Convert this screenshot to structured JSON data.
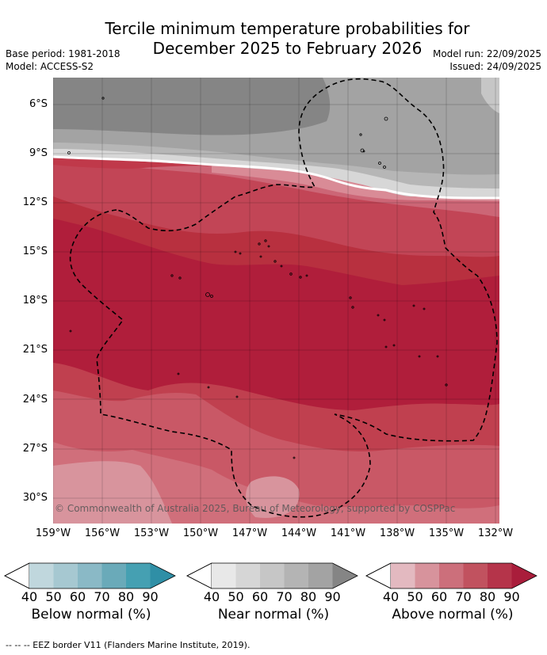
{
  "title_line1": "Tercile minimum temperature probabilities for",
  "title_line2": "December 2025 to February 2026",
  "base_period": "Base period: 1981-2018",
  "model": "Model: ACCESS-S2",
  "model_run": "Model run: 22/09/2025",
  "issued": "Issued: 24/09/2025",
  "lat_labels": [
    "6°S",
    "9°S",
    "12°S",
    "15°S",
    "18°S",
    "21°S",
    "24°S",
    "27°S",
    "30°S"
  ],
  "lon_labels": [
    "159°W",
    "156°W",
    "153°W",
    "150°W",
    "147°W",
    "144°W",
    "141°W",
    "138°W",
    "135°W",
    "132°W"
  ],
  "copyright": "© Commonwealth of Australia 2025, Bureau of Meteorology, supported by COSPPac",
  "legends": [
    {
      "title": "Below normal (%)",
      "ticks": [
        "40",
        "50",
        "60",
        "70",
        "80",
        "90"
      ],
      "colors": [
        "#c0d7dd",
        "#a6c8d1",
        "#8ab9c6",
        "#6aaab9",
        "#45a0b2",
        "#2f8fa6"
      ]
    },
    {
      "title": "Near normal (%)",
      "ticks": [
        "40",
        "50",
        "60",
        "70",
        "80",
        "90"
      ],
      "colors": [
        "#e8e8e8",
        "#d6d6d6",
        "#c6c6c6",
        "#b4b4b4",
        "#a3a3a3",
        "#858585"
      ]
    },
    {
      "title": "Above normal (%)",
      "ticks": [
        "40",
        "50",
        "60",
        "70",
        "80",
        "90"
      ],
      "colors": [
        "#e3b9c0",
        "#d7939c",
        "#cc6f7b",
        "#c1525f",
        "#b5344a",
        "#a91d3b"
      ]
    }
  ],
  "footer": "--  --  -- EEZ border V11 (Flanders Marine Institute, 2019)."
}
